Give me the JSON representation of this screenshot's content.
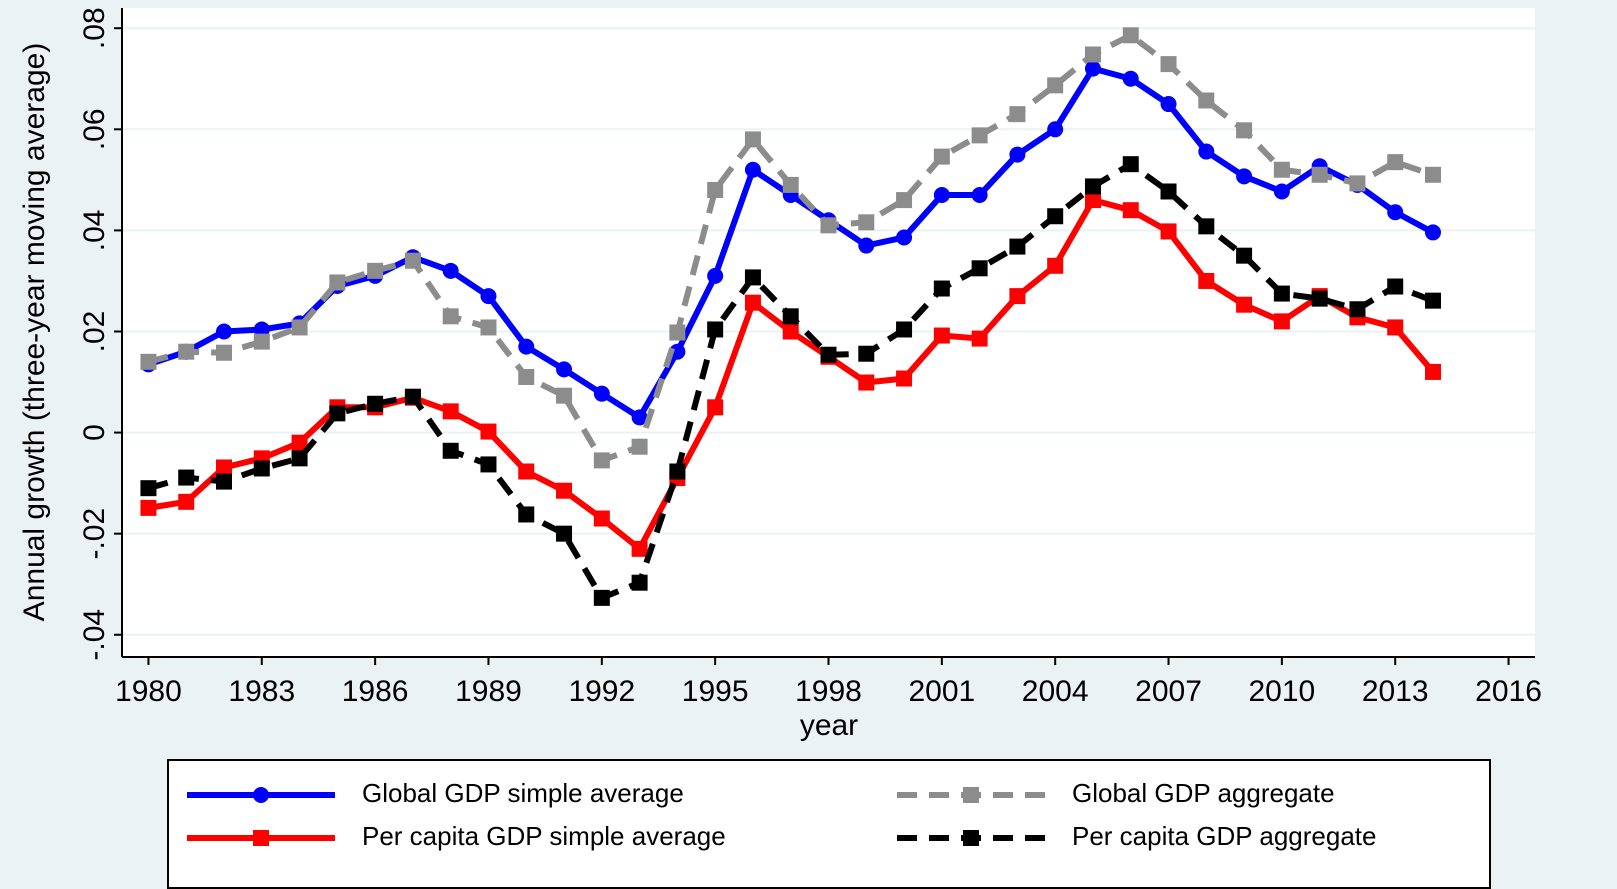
{
  "chart_data": {
    "type": "line",
    "y_label": "Annual growth (three-year moving average)",
    "x_label": "year",
    "x": [
      1980,
      1981,
      1982,
      1983,
      1984,
      1985,
      1986,
      1987,
      1988,
      1989,
      1990,
      1991,
      1992,
      1993,
      1994,
      1995,
      1996,
      1997,
      1998,
      1999,
      2000,
      2001,
      2002,
      2003,
      2004,
      2005,
      2006,
      2007,
      2008,
      2009,
      2010,
      2011,
      2012,
      2013,
      2014
    ],
    "series": [
      {
        "name": "Global GDP simple average",
        "color": "#0000ff",
        "line_style": "solid",
        "marker": "circle",
        "values": [
          0.0135,
          0.016,
          0.02,
          0.0204,
          0.0216,
          0.029,
          0.031,
          0.0347,
          0.032,
          0.027,
          0.017,
          0.0125,
          0.0077,
          0.003,
          0.016,
          0.031,
          0.052,
          0.047,
          0.042,
          0.037,
          0.0386,
          0.047,
          0.047,
          0.055,
          0.06,
          0.072,
          0.07,
          0.065,
          0.0556,
          0.0507,
          0.0477,
          0.0527,
          0.049,
          0.0436,
          0.0396
        ]
      },
      {
        "name": "Global GDP aggregate",
        "color": "#8c8c8c",
        "line_style": "dashed",
        "marker": "square",
        "values": [
          0.014,
          0.016,
          0.0158,
          0.018,
          0.0208,
          0.0297,
          0.032,
          0.034,
          0.023,
          0.0208,
          0.011,
          0.0073,
          -0.0055,
          -0.0028,
          0.0198,
          0.048,
          0.058,
          0.049,
          0.041,
          0.0416,
          0.046,
          0.0546,
          0.0588,
          0.063,
          0.0687,
          0.0748,
          0.0786,
          0.0729,
          0.0657,
          0.0598,
          0.052,
          0.051,
          0.0493,
          0.0535,
          0.051
        ]
      },
      {
        "name": "Per capita GDP simple average",
        "color": "#ff0000",
        "line_style": "solid",
        "marker": "square",
        "values": [
          -0.0149,
          -0.0137,
          -0.0069,
          -0.0051,
          -0.002,
          0.005,
          0.005,
          0.0069,
          0.0042,
          0.0002,
          -0.0077,
          -0.0115,
          -0.017,
          -0.023,
          -0.009,
          0.005,
          0.0257,
          0.02,
          0.015,
          0.0099,
          0.0107,
          0.0192,
          0.0186,
          0.027,
          0.033,
          0.046,
          0.044,
          0.0398,
          0.03,
          0.0253,
          0.022,
          0.027,
          0.0228,
          0.0208,
          0.012
        ]
      },
      {
        "name": "Per capita GDP aggregate",
        "color": "#000000",
        "line_style": "dashed",
        "marker": "square",
        "values": [
          -0.011,
          -0.0089,
          -0.0097,
          -0.0071,
          -0.0051,
          0.0038,
          0.0057,
          0.0071,
          -0.0036,
          -0.0063,
          -0.0162,
          -0.02,
          -0.0327,
          -0.0297,
          -0.0077,
          0.0204,
          0.0307,
          0.023,
          0.0154,
          0.0156,
          0.0204,
          0.0285,
          0.0325,
          0.0368,
          0.0428,
          0.0487,
          0.0531,
          0.0477,
          0.0408,
          0.035,
          0.0275,
          0.0265,
          0.0244,
          0.0289,
          0.0261
        ]
      }
    ],
    "xlim": [
      1979.3,
      2016.7
    ],
    "xticks": [
      1980,
      1983,
      1986,
      1989,
      1992,
      1995,
      1998,
      2001,
      2004,
      2007,
      2010,
      2013,
      2016
    ],
    "ylim": [
      -0.0444,
      0.084
    ],
    "yticks": [
      {
        "value": -0.04,
        "label": "-.04"
      },
      {
        "value": -0.02,
        "label": "-.02"
      },
      0,
      {
        "value": 0.02,
        "label": ".02"
      },
      {
        "value": 0.04,
        "label": ".04"
      },
      {
        "value": 0.06,
        "label": ".06"
      },
      {
        "value": 0.08,
        "label": ".08"
      }
    ],
    "grid": true
  }
}
